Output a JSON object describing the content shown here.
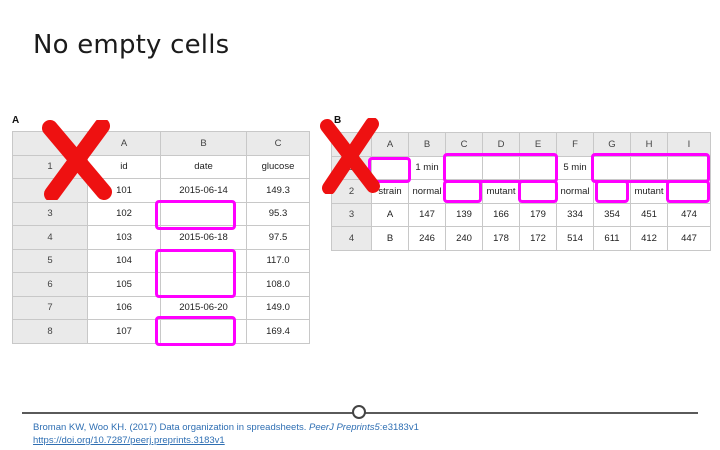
{
  "title": "No empty cells",
  "panel_a": {
    "label": "A",
    "column_headers": [
      "",
      "A",
      "B",
      "C"
    ],
    "rows": [
      [
        "1",
        "id",
        "date",
        "glucose"
      ],
      [
        "2",
        "101",
        "2015-06-14",
        "149.3"
      ],
      [
        "3",
        "102",
        "",
        "95.3"
      ],
      [
        "4",
        "103",
        "2015-06-18",
        "97.5"
      ],
      [
        "5",
        "104",
        "",
        "117.0"
      ],
      [
        "6",
        "105",
        "",
        "108.0"
      ],
      [
        "7",
        "106",
        "2015-06-20",
        "149.0"
      ],
      [
        "8",
        "107",
        "",
        "169.4"
      ]
    ]
  },
  "panel_b": {
    "label": "B",
    "column_headers": [
      "",
      "A",
      "B",
      "C",
      "D",
      "E",
      "F",
      "G",
      "H",
      "I"
    ],
    "rows": [
      [
        "1",
        "",
        "1 min",
        "",
        "",
        "",
        "5 min",
        "",
        "",
        ""
      ],
      [
        "2",
        "strain",
        "normal",
        "",
        "mutant",
        "",
        "normal",
        "",
        "mutant",
        ""
      ],
      [
        "3",
        "A",
        "147",
        "139",
        "166",
        "179",
        "334",
        "354",
        "451",
        "474"
      ],
      [
        "4",
        "B",
        "246",
        "240",
        "178",
        "172",
        "514",
        "611",
        "412",
        "447"
      ]
    ]
  },
  "colors": {
    "highlight": "#ff00ff",
    "x_mark": "#ee1111"
  },
  "citation": {
    "authors": "Broman KW, Woo KH. (2017) Data organization in spreadsheets.",
    "journal": "PeerJ Preprints",
    "volume": "5",
    "article": ":e3183v1",
    "link": "https://doi.org/10.7287/peerj.preprints.3183v1"
  }
}
